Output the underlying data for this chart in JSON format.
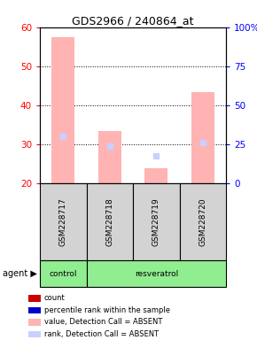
{
  "title": "GDS2966 / 240864_at",
  "samples": [
    "GSM228717",
    "GSM228718",
    "GSM228719",
    "GSM228720"
  ],
  "ylim_left": [
    20,
    60
  ],
  "ylim_right": [
    0,
    100
  ],
  "yticks_left": [
    20,
    30,
    40,
    50,
    60
  ],
  "yticks_right": [
    0,
    25,
    50,
    75,
    100
  ],
  "ytick_right_labels": [
    "0",
    "25",
    "50",
    "75",
    "100%"
  ],
  "bar_values": [
    57.5,
    33.5,
    24.0,
    43.5
  ],
  "rank_values": [
    32.0,
    29.5,
    27.0,
    30.5
  ],
  "bar_color_absent": "#ffb3b3",
  "rank_color_absent": "#c8d0ff",
  "bar_color_present": "#cc0000",
  "rank_color_present": "#0000cc",
  "detection_call": [
    "ABSENT",
    "ABSENT",
    "ABSENT",
    "ABSENT"
  ],
  "sample_bg_color": "#d3d3d3",
  "agent_bg_color": "#90ee90",
  "legend_items": [
    [
      "#cc0000",
      "count"
    ],
    [
      "#0000cc",
      "percentile rank within the sample"
    ],
    [
      "#ffb3b3",
      "value, Detection Call = ABSENT"
    ],
    [
      "#c8d0ff",
      "rank, Detection Call = ABSENT"
    ]
  ]
}
